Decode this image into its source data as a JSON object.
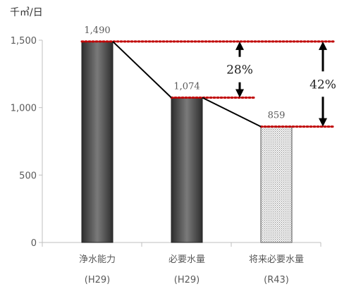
{
  "chart_data": {
    "type": "bar",
    "unit_label": "千㎥/日",
    "categories": [
      {
        "name": "浄水能力",
        "sub": "(H29)"
      },
      {
        "name": "必要水量",
        "sub": "(H29)"
      },
      {
        "name": "将来必要水量",
        "sub": "(R43)"
      }
    ],
    "values": [
      1490,
      1074,
      859
    ],
    "value_labels": [
      "1,490",
      "1,074",
      "859"
    ],
    "ylim": [
      0,
      1500
    ],
    "yticks": [
      0,
      500,
      1000,
      1500
    ],
    "ytick_labels": [
      "0",
      "500",
      "1,000",
      "1,500"
    ],
    "grid": false,
    "bar_styles": [
      "dark-gradient",
      "dark-gradient",
      "dotted-pattern"
    ],
    "annotations": [
      {
        "label": "28%",
        "from_value": 1490,
        "to_value": 1074
      },
      {
        "label": "42%",
        "from_value": 1490,
        "to_value": 859
      }
    ],
    "colors": {
      "bar_dark": "#3a3a3a",
      "bar_light": "#7a7a7a",
      "reference_line": "#c00000",
      "connector": "#000000",
      "axis": "#bfbfbf"
    }
  }
}
